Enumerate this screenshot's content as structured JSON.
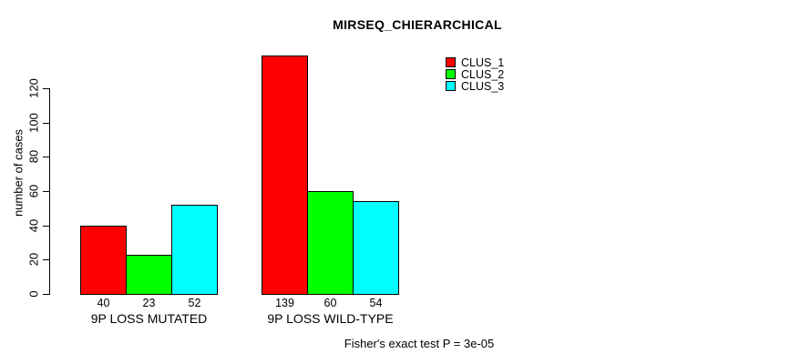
{
  "title": "MIRSEQ_CHIERARCHICAL",
  "caption": "Fisher's exact test P = 3e-05",
  "chart_data": {
    "type": "bar",
    "title": "MIRSEQ_CHIERARCHICAL",
    "categories": [
      "9P LOSS MUTATED",
      "9P LOSS WILD-TYPE"
    ],
    "series": [
      {
        "name": "CLUS_1",
        "color": "#ff0000",
        "values": [
          40,
          139
        ]
      },
      {
        "name": "CLUS_2",
        "color": "#00ff00",
        "values": [
          23,
          60
        ]
      },
      {
        "name": "CLUS_3",
        "color": "#00ffff",
        "values": [
          52,
          54
        ]
      }
    ],
    "bar_value_labels": [
      [
        40,
        23,
        52
      ],
      [
        139,
        60,
        54
      ]
    ],
    "xlabel": "",
    "ylabel": "number of cases",
    "yticks": [
      0,
      20,
      40,
      60,
      80,
      100,
      120
    ],
    "ylim": [
      0,
      120
    ],
    "grid": false,
    "legend_position": "top-right",
    "legend_entries": [
      "CLUS_1",
      "CLUS_2",
      "CLUS_3"
    ],
    "annotation": "Fisher's exact test P = 3e-05",
    "bar_border_color": "#000000",
    "background_color": "#ffffff"
  }
}
